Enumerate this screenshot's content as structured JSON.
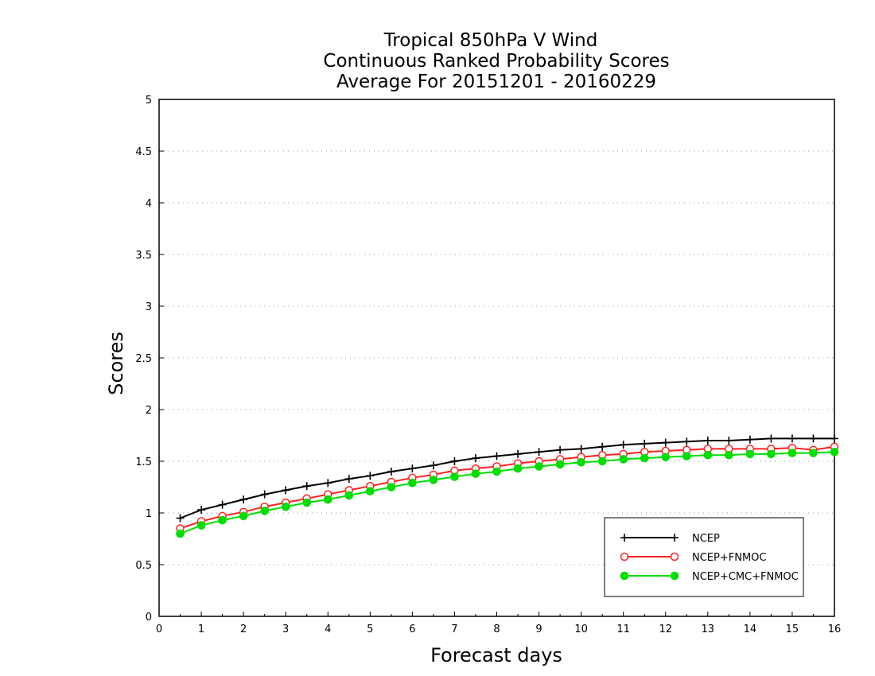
{
  "chart_data": {
    "type": "line",
    "title": [
      "Tropical 850hPa V Wind",
      "Continuous Ranked Probability Scores",
      "Average For 20151201 - 20160229"
    ],
    "xlabel": "Forecast days",
    "ylabel": "Scores",
    "xlim": [
      0,
      16
    ],
    "ylim": [
      0,
      5
    ],
    "x_ticks": [
      "0",
      "1",
      "2",
      "3",
      "4",
      "5",
      "6",
      "7",
      "8",
      "9",
      "10",
      "11",
      "12",
      "13",
      "14",
      "15",
      "16"
    ],
    "y_ticks": [
      "0",
      "0.5",
      "1",
      "1.5",
      "2",
      "2.5",
      "3",
      "3.5",
      "4",
      "4.5",
      "5"
    ],
    "grid": "horizontal dotted",
    "legend_position": "bottom-right",
    "x": [
      0.5,
      1,
      1.5,
      2,
      2.5,
      3,
      3.5,
      4,
      4.5,
      5,
      5.5,
      6,
      6.5,
      7,
      7.5,
      8,
      8.5,
      9,
      9.5,
      10,
      10.5,
      11,
      11.5,
      12,
      12.5,
      13,
      13.5,
      14,
      14.5,
      15,
      15.5,
      16
    ],
    "series": [
      {
        "name": "NCEP",
        "color": "#000000",
        "marker": "plus",
        "values": [
          0.95,
          1.03,
          1.08,
          1.13,
          1.18,
          1.22,
          1.26,
          1.29,
          1.33,
          1.36,
          1.4,
          1.43,
          1.46,
          1.5,
          1.53,
          1.55,
          1.57,
          1.59,
          1.61,
          1.62,
          1.64,
          1.66,
          1.67,
          1.68,
          1.69,
          1.7,
          1.7,
          1.71,
          1.72,
          1.72,
          1.72,
          1.72
        ]
      },
      {
        "name": "NCEP+FNMOC",
        "color": "#ff2020",
        "marker": "open-circle",
        "values": [
          0.85,
          0.92,
          0.97,
          1.01,
          1.06,
          1.1,
          1.14,
          1.18,
          1.22,
          1.26,
          1.3,
          1.34,
          1.37,
          1.41,
          1.43,
          1.45,
          1.48,
          1.5,
          1.52,
          1.54,
          1.56,
          1.57,
          1.59,
          1.6,
          1.61,
          1.62,
          1.62,
          1.62,
          1.62,
          1.63,
          1.61,
          1.64
        ]
      },
      {
        "name": "NCEP+CMC+FNMOC",
        "color": "#00dd00",
        "marker": "filled-circle",
        "values": [
          0.8,
          0.88,
          0.93,
          0.97,
          1.02,
          1.06,
          1.1,
          1.13,
          1.17,
          1.21,
          1.25,
          1.29,
          1.32,
          1.35,
          1.38,
          1.4,
          1.43,
          1.45,
          1.47,
          1.49,
          1.5,
          1.52,
          1.53,
          1.54,
          1.55,
          1.56,
          1.56,
          1.57,
          1.57,
          1.58,
          1.58,
          1.59
        ]
      }
    ]
  }
}
